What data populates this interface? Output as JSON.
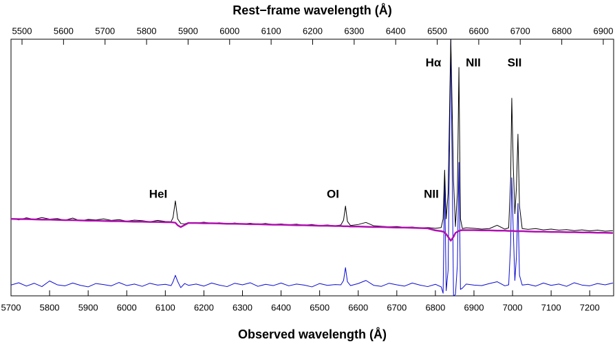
{
  "chart_data": {
    "type": "line",
    "xlabel": "Observed wavelength (Å)",
    "x2label": "Rest−frame wavelength (Å)",
    "xlim": [
      5700,
      7262
    ],
    "xticks": [
      5700,
      5800,
      5900,
      6000,
      6100,
      6200,
      6300,
      6400,
      6500,
      6600,
      6700,
      6800,
      6900,
      7000,
      7100,
      7200
    ],
    "x2lim": [
      5473.5,
      6924.9
    ],
    "x2ticks": [
      5500,
      5600,
      5700,
      5800,
      5900,
      6000,
      6100,
      6200,
      6300,
      6400,
      6500,
      6600,
      6700,
      6800,
      6900
    ],
    "ylim": [
      0,
      100
    ],
    "annotations": [
      "HeI",
      "OI",
      "NII",
      "Hα",
      "NII",
      "SII"
    ],
    "x": [
      5700,
      5720,
      5740,
      5760,
      5780,
      5800,
      5820,
      5840,
      5860,
      5880,
      5900,
      5920,
      5940,
      5960,
      5980,
      6000,
      6020,
      6040,
      6060,
      6080,
      6100,
      6115,
      6120,
      6126,
      6132,
      6140,
      6150,
      6160,
      6180,
      6200,
      6220,
      6240,
      6260,
      6280,
      6300,
      6320,
      6340,
      6360,
      6380,
      6400,
      6420,
      6440,
      6460,
      6480,
      6500,
      6520,
      6540,
      6555,
      6562,
      6567,
      6572,
      6580,
      6600,
      6620,
      6640,
      6660,
      6680,
      6700,
      6720,
      6740,
      6760,
      6780,
      6800,
      6815,
      6820,
      6824,
      6828,
      6833,
      6840,
      6847,
      6852,
      6857,
      6861,
      6865,
      6870,
      6880,
      6900,
      6920,
      6940,
      6960,
      6980,
      6990,
      6995,
      6998,
      7002,
      7006,
      7010,
      7014,
      7018,
      7025,
      7040,
      7060,
      7080,
      7100,
      7120,
      7140,
      7160,
      7180,
      7200,
      7220,
      7240,
      7260
    ],
    "series": [
      {
        "color": "#0a0ad0",
        "values": [
          4.2,
          5.1,
          3.8,
          4.9,
          3.6,
          5.8,
          4.3,
          3.9,
          5.0,
          4.1,
          3.5,
          4.8,
          4.4,
          3.9,
          5.2,
          4.0,
          4.6,
          3.7,
          4.9,
          4.2,
          4.5,
          4.0,
          5.5,
          8.0,
          5.6,
          3.2,
          4.8,
          4.1,
          4.6,
          3.8,
          5.0,
          4.2,
          3.6,
          4.9,
          4.3,
          5.1,
          3.7,
          4.5,
          4.0,
          5.0,
          3.9,
          4.6,
          4.2,
          3.5,
          4.8,
          4.1,
          4.4,
          4.3,
          6.0,
          11,
          5.5,
          4.0,
          4.8,
          6.0,
          4.1,
          3.7,
          4.9,
          4.3,
          3.8,
          5.0,
          4.2,
          3.6,
          4.5,
          3.5,
          1.0,
          45,
          2.0,
          10,
          100,
          0,
          0.5,
          12,
          52,
          2.5,
          3.0,
          4.6,
          4.2,
          4.0,
          4.8,
          5.5,
          3.9,
          4.3,
          20,
          46,
          25,
          6,
          15,
          36,
          8,
          4.2,
          4.5,
          3.8,
          5.0,
          4.1,
          4.6,
          3.7,
          5.1,
          4.2,
          3.9,
          4.8,
          4.3,
          5.0
        ]
      },
      {
        "color": "#000000",
        "values": [
          30.2,
          29.6,
          30.4,
          29.8,
          30.5,
          29.9,
          30.1,
          29.5,
          30.3,
          29.2,
          29.8,
          29.6,
          30.0,
          29.4,
          29.7,
          29.1,
          29.5,
          29.3,
          28.9,
          29.4,
          29.0,
          28.9,
          30.5,
          37,
          30,
          28.2,
          28.0,
          28.6,
          28.4,
          28.7,
          28.3,
          28.5,
          28.1,
          28.4,
          28.0,
          28.3,
          27.9,
          28.2,
          27.8,
          28.0,
          27.7,
          27.9,
          27.5,
          27.8,
          27.4,
          27.6,
          27.3,
          27.6,
          29.5,
          35,
          29,
          27.4,
          27.8,
          28.6,
          27.3,
          27.1,
          26.9,
          27.0,
          26.7,
          26.8,
          26.5,
          26.6,
          26.3,
          26.6,
          30,
          49,
          30,
          40,
          100,
          45,
          27,
          40,
          89,
          30,
          26.2,
          26.5,
          26.3,
          26.0,
          26.2,
          27.5,
          26.0,
          26.5,
          45,
          77,
          50,
          32,
          42,
          63,
          35,
          26.2,
          25.9,
          26.2,
          25.7,
          26.0,
          25.6,
          25.8,
          25.4,
          25.7,
          25.3,
          25.6,
          25.2,
          25.4
        ]
      },
      {
        "color": "#b010b0",
        "values": [
          30.0,
          29.9,
          29.9,
          29.8,
          29.7,
          29.7,
          29.6,
          29.5,
          29.5,
          29.4,
          29.3,
          29.3,
          29.2,
          29.1,
          29.1,
          29.0,
          28.9,
          28.9,
          28.8,
          28.8,
          28.7,
          28.7,
          28.6,
          28.5,
          27.5,
          26.8,
          27.6,
          28.4,
          28.4,
          28.3,
          28.3,
          28.2,
          28.1,
          28.1,
          28.0,
          27.9,
          27.9,
          27.8,
          27.7,
          27.7,
          27.6,
          27.5,
          27.5,
          27.4,
          27.3,
          27.3,
          27.2,
          27.2,
          27.1,
          27.1,
          27.1,
          27.0,
          27.0,
          26.9,
          26.8,
          26.8,
          26.7,
          26.6,
          26.6,
          26.5,
          26.4,
          26.3,
          25.5,
          25.2,
          25.0,
          24.8,
          24.0,
          23.0,
          21.5,
          23.0,
          24.5,
          25.0,
          25.3,
          25.5,
          25.6,
          25.6,
          25.6,
          25.5,
          25.5,
          25.4,
          25.4,
          25.3,
          25.3,
          25.3,
          25.3,
          25.2,
          25.2,
          25.2,
          25.2,
          25.2,
          25.1,
          25.0,
          25.0,
          24.9,
          24.9,
          24.8,
          24.8,
          24.7,
          24.7,
          24.6,
          24.6,
          24.5
        ]
      }
    ]
  }
}
